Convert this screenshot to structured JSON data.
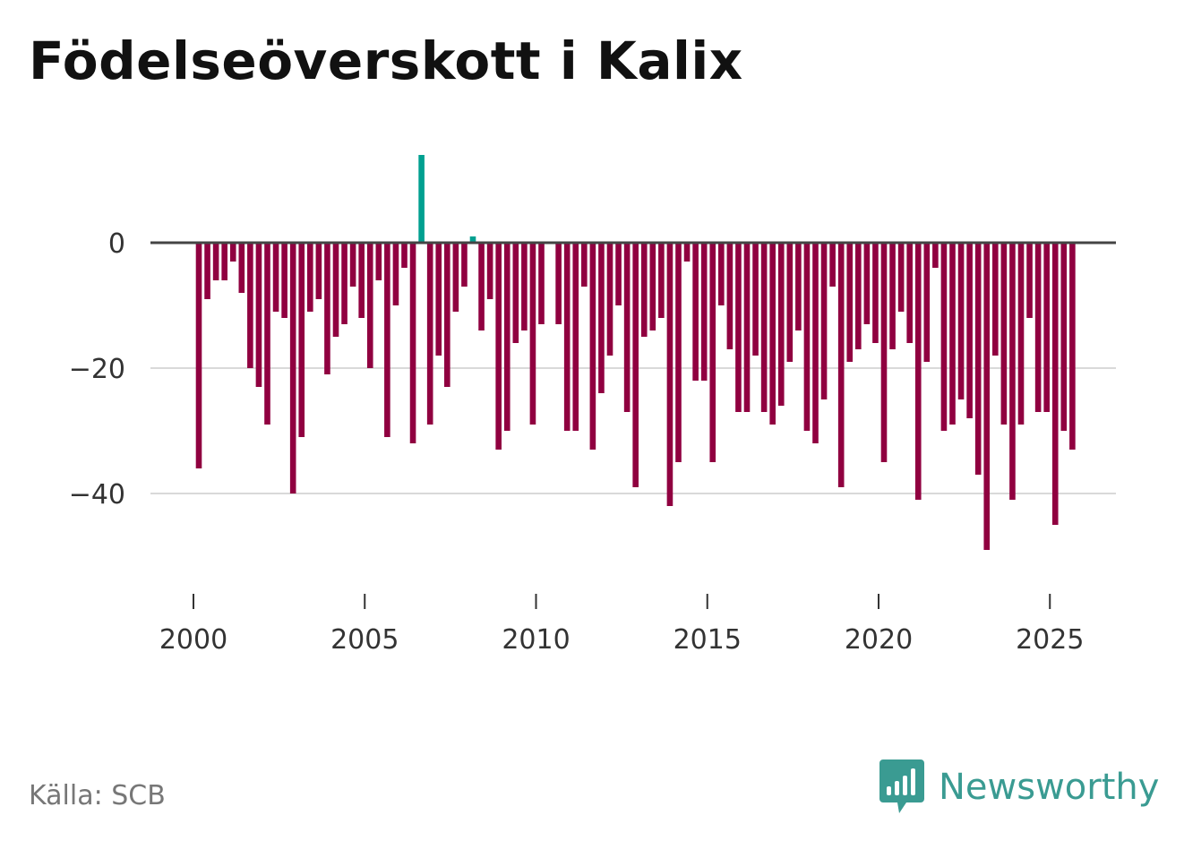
{
  "header": {
    "title": "Födelseöverskott i Kalix"
  },
  "footer": {
    "source": "Källa: SCB",
    "brand": "Newsworthy"
  },
  "colors": {
    "negative": "#900040",
    "positive": "#00a090",
    "baseline": "#444444",
    "grid": "#d9d9d9",
    "brand": "#3a9b92"
  },
  "chart_data": {
    "type": "bar",
    "title": "Födelseöverskott i Kalix",
    "xlabel": "",
    "ylabel": "",
    "frequency": "quarterly",
    "x_start": 2000.0,
    "x_step": 0.25,
    "xlim": [
      1999.0,
      2027.0
    ],
    "ylim": [
      -50,
      15
    ],
    "yticks": [
      0,
      -20,
      -40
    ],
    "ytick_labels": [
      "0",
      "−20",
      "−40"
    ],
    "xticks": [
      2000,
      2005,
      2010,
      2015,
      2020,
      2025
    ],
    "xtick_labels": [
      "2000",
      "2005",
      "2010",
      "2015",
      "2020",
      "2025"
    ],
    "grid": true,
    "values": [
      -36,
      -9,
      -6,
      -6,
      -3,
      -8,
      -20,
      -23,
      -29,
      -11,
      -12,
      -40,
      -31,
      -11,
      -9,
      -21,
      -15,
      -13,
      -7,
      -12,
      -20,
      -6,
      -31,
      -10,
      -4,
      -32,
      14,
      -29,
      -18,
      -23,
      -11,
      -7,
      1,
      -14,
      -9,
      -33,
      -30,
      -16,
      -14,
      -29,
      -13,
      0,
      -13,
      -30,
      -30,
      -7,
      -33,
      -24,
      -18,
      -10,
      -27,
      -39,
      -15,
      -14,
      -12,
      -42,
      -35,
      -3,
      -22,
      -22,
      -35,
      -10,
      -17,
      -27,
      -27,
      -18,
      -27,
      -29,
      -26,
      -19,
      -14,
      -30,
      -32,
      -25,
      -7,
      -39,
      -19,
      -17,
      -13,
      -16,
      -35,
      -17,
      -11,
      -16,
      -41,
      -19,
      -4,
      -30,
      -29,
      -25,
      -28,
      -37,
      -49,
      -18,
      -29,
      -41,
      -29,
      -12,
      -27,
      -27,
      -45,
      -30,
      -33
    ]
  }
}
